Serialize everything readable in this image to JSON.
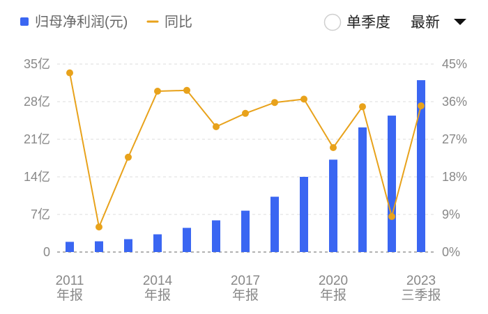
{
  "controls": {
    "single_quarter_label": "单季度",
    "latest_label": "最新"
  },
  "colors": {
    "bar": "#3a66f2",
    "line": "#e8a21b",
    "grid": "#dddddd",
    "axis_text": "#888888"
  },
  "icons": {
    "radio": "radio-circle-icon",
    "dropdown": "triangle-down-icon"
  },
  "chart_data": {
    "type": "bar",
    "categories": [
      "2011",
      "2012",
      "2013",
      "2014",
      "2015",
      "2016",
      "2017",
      "2018",
      "2019",
      "2020",
      "2021",
      "2022",
      "2023"
    ],
    "x_tick_labels": [
      {
        "category": "2011",
        "line1": "2011",
        "line2": "年报"
      },
      {
        "category": "2014",
        "line1": "2014",
        "line2": "年报"
      },
      {
        "category": "2017",
        "line1": "2017",
        "line2": "年报"
      },
      {
        "category": "2020",
        "line1": "2020",
        "line2": "年报"
      },
      {
        "category": "2023",
        "line1": "2023",
        "line2": "三季报"
      }
    ],
    "series": [
      {
        "name": "归母净利润(元)",
        "type": "bar",
        "axis": "left",
        "color": "#3a66f2",
        "values": [
          1.9,
          2.0,
          2.4,
          3.3,
          4.5,
          5.9,
          7.7,
          10.3,
          14.0,
          17.2,
          23.2,
          25.4,
          32.0
        ]
      },
      {
        "name": "同比",
        "type": "line",
        "axis": "right",
        "color": "#e8a21b",
        "values": [
          42.9,
          6.0,
          22.7,
          38.5,
          38.7,
          30.0,
          33.2,
          35.8,
          36.6,
          25.0,
          34.8,
          8.5,
          35.0
        ]
      }
    ],
    "y_left": {
      "ticks": [
        0,
        7,
        14,
        21,
        28,
        35
      ],
      "tick_labels": [
        "0",
        "7亿",
        "14亿",
        "21亿",
        "28亿",
        "35亿"
      ],
      "ylim": [
        0,
        35
      ]
    },
    "y_right": {
      "ticks": [
        0,
        9,
        18,
        27,
        36,
        45
      ],
      "tick_labels": [
        "0%",
        "9%",
        "18%",
        "27%",
        "36%",
        "45%"
      ],
      "ylim": [
        0,
        45
      ]
    },
    "grid": true,
    "legend": "top-left"
  }
}
